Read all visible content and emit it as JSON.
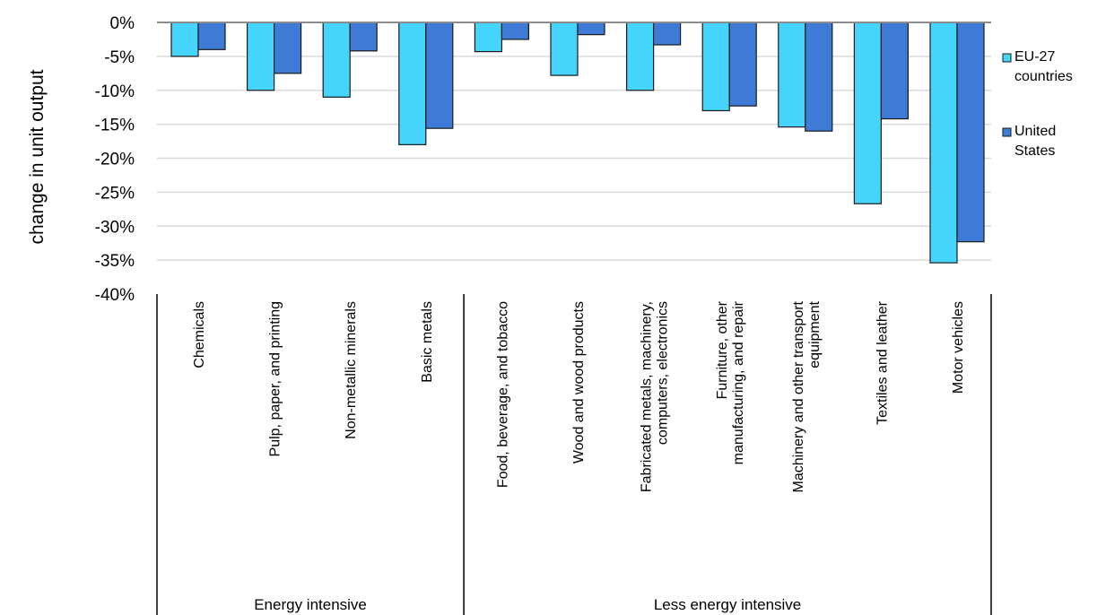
{
  "chart_data": {
    "type": "bar",
    "title": "",
    "xlabel": "",
    "ylabel": "change in unit output",
    "ylim": [
      -40,
      0
    ],
    "yticks": [
      0,
      -5,
      -10,
      -15,
      -20,
      -25,
      -30,
      -35,
      -40
    ],
    "ytick_labels": [
      "0%",
      "-5%",
      "-10%",
      "-15%",
      "-20%",
      "-25%",
      "-30%",
      "-35%",
      "-40%"
    ],
    "grid": true,
    "legend_position": "right",
    "categories": [
      [
        "Chemicals"
      ],
      [
        "Pulp, paper, and printing"
      ],
      [
        "Non-metallic minerals"
      ],
      [
        "Basic metals"
      ],
      [
        "Food, beverage, and tobacco"
      ],
      [
        "Wood and wood products"
      ],
      [
        "Fabricated metals, machinery,",
        "computers, electronics"
      ],
      [
        "Furniture, other",
        "manufacturing, and repair"
      ],
      [
        "Machinery and other transport",
        "equipment"
      ],
      [
        "Textiles and leather"
      ],
      [
        "Motor vehicles"
      ]
    ],
    "groups": [
      {
        "label": "Energy intensive",
        "start": 0,
        "end": 3
      },
      {
        "label": "Less energy intensive",
        "start": 4,
        "end": 10
      }
    ],
    "series": [
      {
        "name": [
          "EU-27",
          "countries"
        ],
        "color": "#45d4fb",
        "values": [
          -5,
          -10,
          -11,
          -18,
          -4.3,
          -7.8,
          -10,
          -13,
          -15.4,
          -26.7,
          -35.4
        ]
      },
      {
        "name": [
          "United",
          "States"
        ],
        "color": "#3d7bd6",
        "values": [
          -4,
          -7.5,
          -4.2,
          -15.6,
          -2.5,
          -1.8,
          -3.3,
          -12.3,
          -16,
          -14.2,
          -32.3
        ]
      }
    ]
  }
}
